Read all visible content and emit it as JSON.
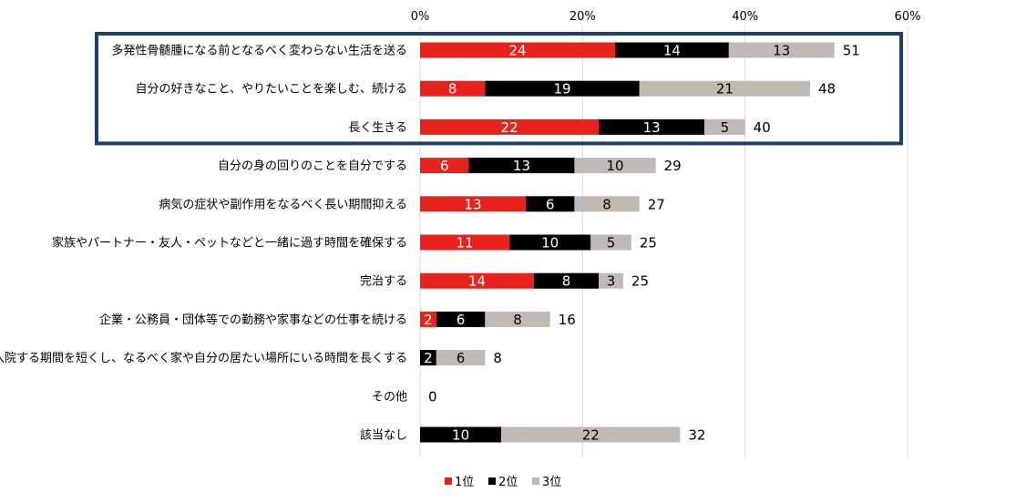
{
  "chart_data": {
    "type": "bar",
    "orientation": "horizontal",
    "stacked": true,
    "x_ticks": [
      "0%",
      "20%",
      "40%",
      "60%"
    ],
    "xlim": [
      0,
      60
    ],
    "grid": true,
    "legend_position": "bottom",
    "categories": [
      "多発性骨髄腫になる前となるべく変わらない生活を送る",
      "自分の好きなこと、やりたいことを楽しむ、続ける",
      "長く生きる",
      "自分の身の回りのことを自分でする",
      "病気の症状や副作用をなるべく長い期間抑える",
      "家族やパートナー・友人・ペットなどと一緒に過す時間を確保する",
      "完治する",
      "企業・公務員・団体等での勤務や家事などの仕事を続ける",
      "入院する期間を短くし、なるべく家や自分の居たい場所にいる時間を長くする",
      "その他",
      "該当なし"
    ],
    "series": [
      {
        "name": "1位",
        "color": "#e8231c",
        "label_color": "#ffffff",
        "values": [
          24,
          8,
          22,
          6,
          13,
          11,
          14,
          2,
          0,
          0,
          0
        ]
      },
      {
        "name": "2位",
        "color": "#000000",
        "label_color": "#ffffff",
        "values": [
          14,
          19,
          13,
          13,
          6,
          10,
          8,
          6,
          2,
          0,
          10
        ]
      },
      {
        "name": "3位",
        "color": "#bfbab3",
        "label_color": "#000000",
        "values": [
          13,
          21,
          5,
          10,
          8,
          5,
          3,
          8,
          6,
          0,
          22
        ]
      }
    ],
    "totals": [
      51,
      48,
      40,
      29,
      27,
      25,
      25,
      16,
      8,
      0,
      32
    ],
    "highlight_box": {
      "first_row": 0,
      "last_row": 2,
      "color": "#1f3f6e"
    }
  }
}
